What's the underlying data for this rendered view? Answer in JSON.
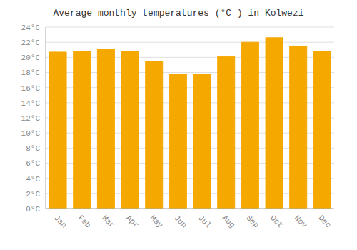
{
  "chart_data": {
    "type": "bar",
    "title": "Average monthly temperatures (°C ) in Kolwezi",
    "categories": [
      "Jan",
      "Feb",
      "Mar",
      "Apr",
      "May",
      "Jun",
      "Jul",
      "Aug",
      "Sep",
      "Oct",
      "Nov",
      "Dec"
    ],
    "values": [
      20.7,
      20.8,
      21.1,
      20.8,
      19.5,
      17.8,
      17.8,
      20.1,
      22.0,
      22.6,
      21.5,
      20.8
    ],
    "color": "#F5A800",
    "ylim": [
      0,
      24
    ],
    "yticks": [
      {
        "value": 0,
        "label": "0°C"
      },
      {
        "value": 2,
        "label": "2°C"
      },
      {
        "value": 4,
        "label": "4°C"
      },
      {
        "value": 6,
        "label": "6°C"
      },
      {
        "value": 8,
        "label": "8°C"
      },
      {
        "value": 10,
        "label": "10°C"
      },
      {
        "value": 12,
        "label": "12°C"
      },
      {
        "value": 14,
        "label": "14°C"
      },
      {
        "value": 16,
        "label": "16°C"
      },
      {
        "value": 18,
        "label": "18°C"
      },
      {
        "value": 20,
        "label": "20°C"
      },
      {
        "value": 22,
        "label": "22°C"
      },
      {
        "value": 24,
        "label": "24°C"
      }
    ],
    "grid": true
  }
}
